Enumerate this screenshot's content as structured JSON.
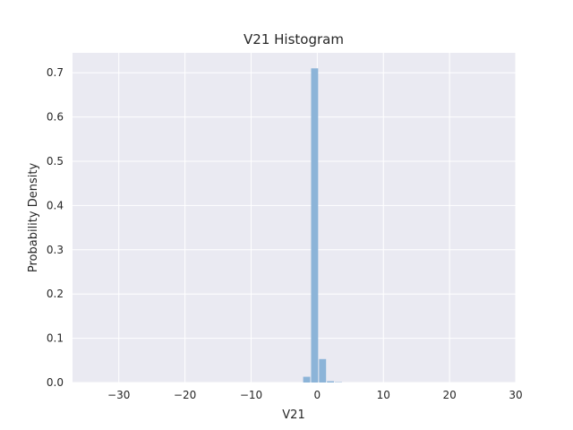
{
  "chart_data": {
    "type": "bar",
    "title": "V21 Histogram",
    "xlabel": "V21",
    "ylabel": "Probability Density",
    "xlim": [
      -37,
      30
    ],
    "ylim": [
      0,
      0.745
    ],
    "xticks": [
      -30,
      -20,
      -10,
      0,
      10,
      20,
      30
    ],
    "yticks": [
      0.0,
      0.1,
      0.2,
      0.3,
      0.4,
      0.5,
      0.6,
      0.7
    ],
    "grid": true,
    "bins": [
      {
        "x0": -2.2,
        "x1": -1.0,
        "value": 0.013
      },
      {
        "x0": -1.0,
        "x1": 0.2,
        "value": 0.71
      },
      {
        "x0": 0.2,
        "x1": 1.4,
        "value": 0.053
      },
      {
        "x0": 1.4,
        "x1": 2.6,
        "value": 0.003
      },
      {
        "x0": 2.6,
        "x1": 3.8,
        "value": 0.0008
      }
    ],
    "colors": {
      "background": "#eaeaf2",
      "grid": "#ffffff",
      "bar": "#8cb4d8"
    }
  }
}
